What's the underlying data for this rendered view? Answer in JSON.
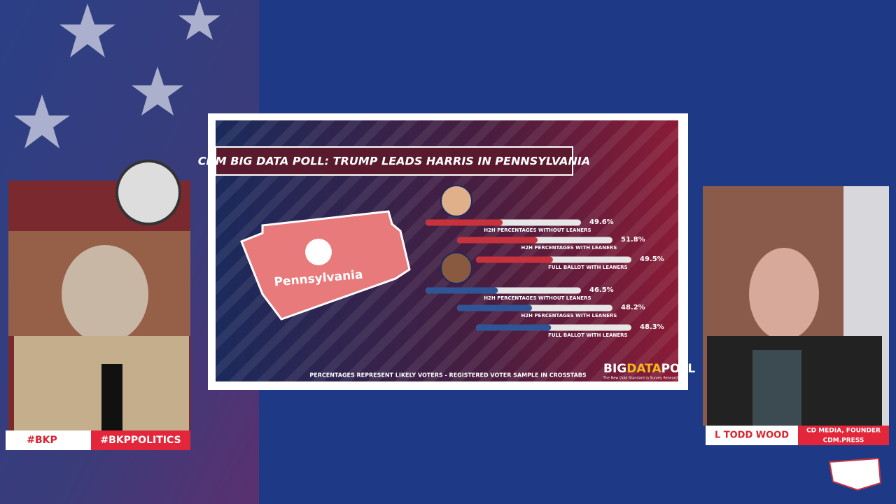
{
  "chart_data": {
    "type": "hbar",
    "title": "CDM BIG DATA POLL: TRUMP LEADS HARRIS IN PENNSYLVANIA",
    "map_label": "Pennsylvania",
    "footnote": "PERCENTAGES REPRESENT LIKELY VOTERS - REGISTERED VOTER SAMPLE IN CROSSTABS",
    "logo": {
      "big": "BIG",
      "data": "DATA",
      "poll": "POLL",
      "tagline": "The New Gold Standard in Survey Research"
    },
    "categories": [
      "H2H PERCENTAGES WITHOUT LEANERS",
      "H2H PERCENTAGES WITH LEANERS",
      "FULL BALLOT WITH LEANERS"
    ],
    "xlim": [
      0,
      100
    ],
    "series": [
      {
        "color": "#c8323c",
        "values": [
          49.6,
          51.8,
          49.5
        ],
        "value_labels": [
          "49.6%",
          "51.8%",
          "49.5%"
        ]
      },
      {
        "color": "#2f5597",
        "values": [
          46.5,
          48.2,
          48.3
        ],
        "value_labels": [
          "46.5%",
          "48.2%",
          "48.3%"
        ]
      }
    ]
  },
  "overlays": {
    "left": [
      "#BKP",
      "#BKPPOLITICS"
    ],
    "right": {
      "name": "L TODD WOOD",
      "role": "CD MEDIA, FOUNDER",
      "site": "CDM.PRESS"
    }
  }
}
